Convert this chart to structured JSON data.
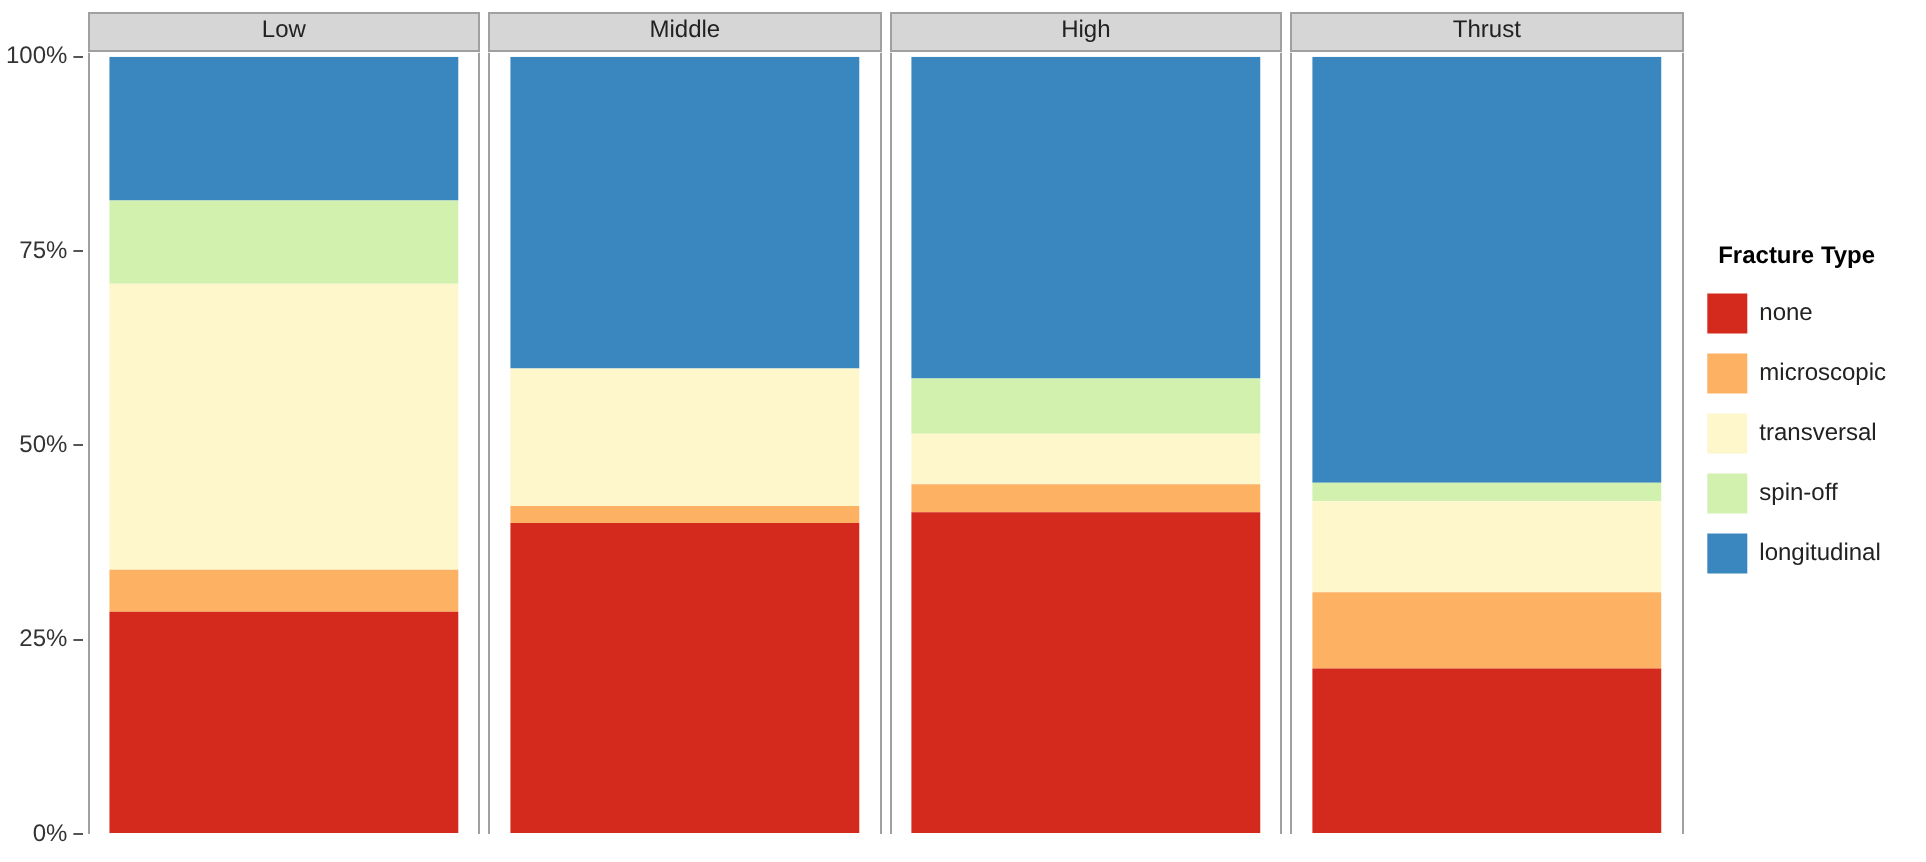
{
  "chart_data": {
    "type": "bar",
    "stacked": true,
    "categories": [
      "Low",
      "Middle",
      "High",
      "Thrust"
    ],
    "series": [
      {
        "name": "none",
        "color": "#d42a1d",
        "values": [
          28.6,
          40.0,
          41.4,
          21.3
        ]
      },
      {
        "name": "microscopic",
        "color": "#fdb163",
        "values": [
          5.4,
          2.2,
          3.6,
          9.8
        ]
      },
      {
        "name": "transversal",
        "color": "#fef7cb",
        "values": [
          36.8,
          17.7,
          6.5,
          11.7
        ]
      },
      {
        "name": "spin-off",
        "color": "#d2f0ae",
        "values": [
          10.7,
          0,
          7.1,
          2.4
        ]
      },
      {
        "name": "longitudinal",
        "color": "#3a87bf",
        "values": [
          18.5,
          40.1,
          41.4,
          54.8
        ]
      }
    ],
    "ylim": [
      0,
      100
    ],
    "yticks": [
      {
        "value": 0,
        "label": "0%"
      },
      {
        "value": 25,
        "label": "25%"
      },
      {
        "value": 50,
        "label": "50%"
      },
      {
        "value": 75,
        "label": "75%"
      },
      {
        "value": 100,
        "label": "100%"
      }
    ],
    "grid": false,
    "legend": "right",
    "legend_title": "Fracture Type"
  }
}
